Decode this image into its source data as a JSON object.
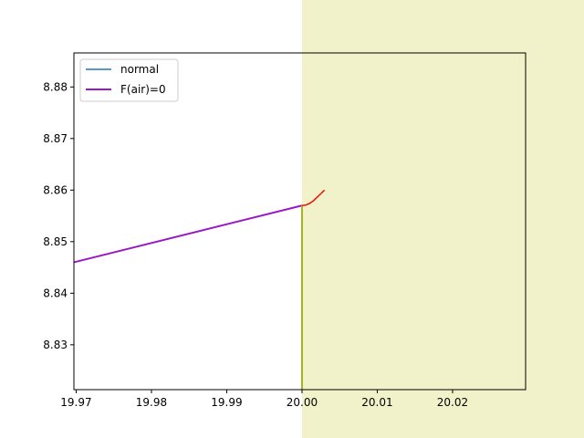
{
  "chart_data": {
    "type": "line",
    "title": "",
    "xlabel": "",
    "ylabel": "",
    "xlim": [
      19.9697,
      20.0297
    ],
    "ylim": [
      8.8213,
      8.8866
    ],
    "grid": false,
    "legend_position": "top-left",
    "x_ticks": [
      19.97,
      19.98,
      19.99,
      20.0,
      20.01,
      20.02
    ],
    "x_tick_labels": [
      "19.97",
      "19.98",
      "19.99",
      "20.00",
      "20.01",
      "20.02"
    ],
    "y_ticks": [
      8.83,
      8.84,
      8.85,
      8.86,
      8.87,
      8.88
    ],
    "y_tick_labels": [
      "8.83",
      "8.84",
      "8.85",
      "8.86",
      "8.87",
      "8.88"
    ],
    "shaded_region": {
      "x_start": 20.0,
      "color": "#f1f2c9"
    },
    "series": [
      {
        "name": "normal",
        "color": "#1f77b4",
        "x": [
          20.0,
          20.0
        ],
        "y": [
          8.8213,
          8.857
        ]
      },
      {
        "name": "F(air)=0",
        "color": "#9b19c4",
        "x": [
          19.9697,
          20.0
        ],
        "y": [
          8.846,
          8.857
        ]
      },
      {
        "color": "#a8b41f",
        "x": [
          20.0,
          20.0
        ],
        "y": [
          8.8213,
          8.857
        ]
      },
      {
        "color": "#e8120c",
        "x": [
          20.0,
          20.0005,
          20.001,
          20.0015,
          20.002,
          20.0025,
          20.003
        ],
        "y": [
          8.857,
          8.8571,
          8.8574,
          8.8579,
          8.8586,
          8.8593,
          8.86
        ]
      }
    ]
  }
}
